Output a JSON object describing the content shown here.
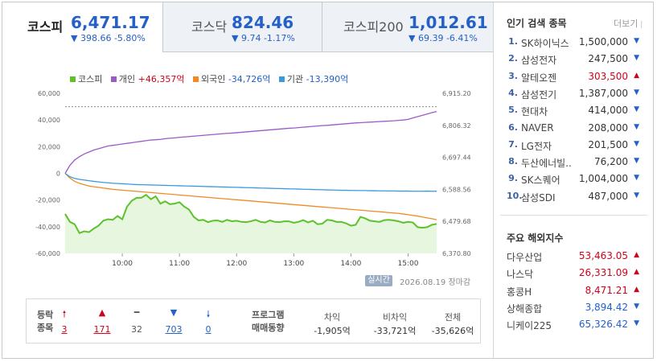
{
  "tabs": [
    {
      "name": "코스피",
      "value": "6,471.17",
      "change": "▼ 398.66 -5.80%",
      "active": true
    },
    {
      "name": "코스닥",
      "value": "824.46",
      "change": "▼ 9.74 -1.17%",
      "active": false
    },
    {
      "name": "코스피200",
      "value": "1,012.61",
      "change": "▼ 69.39 -6.41%",
      "active": false
    }
  ],
  "legend": {
    "kospi": "코스피",
    "individual_label": "개인",
    "individual_value": "+46,357억",
    "foreign_label": "외국인",
    "foreign_value": "-34,726억",
    "institution_label": "기관",
    "institution_value": "-13,390억"
  },
  "colors": {
    "kospi": "#5cc22a",
    "individual": "#9a5bc9",
    "foreign": "#f08a24",
    "institution": "#3a9ae0",
    "up": "#d0021b",
    "down": "#2460c7"
  },
  "chart_data": {
    "type": "line",
    "x": [
      "09:00",
      "09:05",
      "09:10",
      "09:15",
      "09:20",
      "09:25",
      "09:30",
      "09:35",
      "09:40",
      "09:45",
      "09:50",
      "09:55",
      "10:00",
      "10:05",
      "10:10",
      "10:15",
      "10:20",
      "10:25",
      "10:30",
      "10:35",
      "10:40",
      "10:45",
      "10:50",
      "10:55",
      "11:00",
      "11:05",
      "11:10",
      "11:15",
      "11:20",
      "11:25",
      "11:30",
      "11:35",
      "11:40",
      "11:45",
      "11:50",
      "11:55",
      "12:00",
      "12:05",
      "12:10",
      "12:15",
      "12:20",
      "12:25",
      "12:30",
      "12:35",
      "12:40",
      "12:45",
      "12:50",
      "12:55",
      "13:00",
      "13:05",
      "13:10",
      "13:15",
      "13:20",
      "13:25",
      "13:30",
      "13:35",
      "13:40",
      "13:45",
      "13:50",
      "13:55",
      "14:00",
      "14:05",
      "14:10",
      "14:15",
      "14:20",
      "14:25",
      "14:30",
      "14:35",
      "14:40",
      "14:45",
      "14:50",
      "14:55",
      "15:00",
      "15:05",
      "15:10",
      "15:15",
      "15:20",
      "15:25",
      "15:30"
    ],
    "series": [
      {
        "name": "개인",
        "axis": "left",
        "values": [
          0,
          6000,
          10000,
          12500,
          14500,
          16000,
          17500,
          18500,
          19500,
          20500,
          21000,
          21500,
          22000,
          22500,
          23000,
          23500,
          24000,
          24500,
          25000,
          25200,
          25500,
          26000,
          26300,
          26600,
          27000,
          27300,
          27600,
          27900,
          28200,
          28500,
          28800,
          29100,
          29400,
          29700,
          30000,
          30200,
          30500,
          30800,
          31100,
          31400,
          31700,
          32000,
          32300,
          32600,
          32900,
          33200,
          33500,
          33800,
          34000,
          34300,
          34600,
          34900,
          35200,
          35500,
          35800,
          36000,
          36300,
          36600,
          36900,
          37200,
          37500,
          37800,
          38000,
          38200,
          38400,
          38600,
          38800,
          39000,
          39200,
          39400,
          39700,
          40000,
          40500,
          41500,
          42500,
          43500,
          44500,
          45500,
          46357
        ]
      },
      {
        "name": "외국인",
        "axis": "left",
        "values": [
          0,
          -3500,
          -6000,
          -7500,
          -8500,
          -9500,
          -10000,
          -10500,
          -11000,
          -11500,
          -12000,
          -12300,
          -12600,
          -12900,
          -13200,
          -13500,
          -13800,
          -14100,
          -14400,
          -14700,
          -15000,
          -15300,
          -15600,
          -15900,
          -16200,
          -16500,
          -16800,
          -17100,
          -17400,
          -17700,
          -18000,
          -18300,
          -18600,
          -18900,
          -19200,
          -19500,
          -19800,
          -20100,
          -20400,
          -20700,
          -21000,
          -21300,
          -21600,
          -21900,
          -22200,
          -22500,
          -22800,
          -23100,
          -23400,
          -23700,
          -24000,
          -24300,
          -24600,
          -24900,
          -25200,
          -25500,
          -25800,
          -26100,
          -26400,
          -26700,
          -27000,
          -27300,
          -27600,
          -27900,
          -28200,
          -28500,
          -28800,
          -29100,
          -29400,
          -29700,
          -30000,
          -30500,
          -31000,
          -31500,
          -32000,
          -32700,
          -33400,
          -34000,
          -34726
        ]
      },
      {
        "name": "기관",
        "axis": "left",
        "values": [
          0,
          -2500,
          -3800,
          -4500,
          -5000,
          -5500,
          -6000,
          -6400,
          -6800,
          -7100,
          -7400,
          -7600,
          -7800,
          -8000,
          -8200,
          -8400,
          -8500,
          -8600,
          -8700,
          -8800,
          -8900,
          -9000,
          -9100,
          -9200,
          -9300,
          -9400,
          -9500,
          -9600,
          -9700,
          -9800,
          -9900,
          -10000,
          -10100,
          -10200,
          -10300,
          -10400,
          -10500,
          -10600,
          -10700,
          -10800,
          -10900,
          -11000,
          -11100,
          -11200,
          -11300,
          -11400,
          -11500,
          -11600,
          -11700,
          -11800,
          -11900,
          -12000,
          -12100,
          -12200,
          -12300,
          -12400,
          -12500,
          -12600,
          -12700,
          -12700,
          -12800,
          -12800,
          -12900,
          -12900,
          -13000,
          -13000,
          -13100,
          -13100,
          -13200,
          -13200,
          -13300,
          -13300,
          -13300,
          -13400,
          -13400,
          -13400,
          -13300,
          -13400,
          -13390
        ]
      },
      {
        "name": "코스피",
        "axis": "right",
        "values": [
          6505,
          6478,
          6470,
          6440,
          6446,
          6443,
          6455,
          6465,
          6482,
          6487,
          6485,
          6498,
          6487,
          6530,
          6550,
          6560,
          6560,
          6570,
          6555,
          6565,
          6540,
          6548,
          6538,
          6540,
          6545,
          6530,
          6520,
          6495,
          6483,
          6485,
          6477,
          6482,
          6483,
          6478,
          6485,
          6480,
          6482,
          6478,
          6477,
          6480,
          6485,
          6478,
          6476,
          6483,
          6478,
          6477,
          6480,
          6480,
          6475,
          6478,
          6484,
          6476,
          6482,
          6470,
          6472,
          6485,
          6483,
          6478,
          6478,
          6473,
          6465,
          6468,
          6495,
          6490,
          6482,
          6480,
          6478,
          6484,
          6485,
          6483,
          6480,
          6475,
          6478,
          6476,
          6460,
          6458,
          6460,
          6468,
          6471.17
        ]
      }
    ],
    "left_ticks": [
      "60,000",
      "40,000",
      "20,000",
      "0",
      "-20,000",
      "-40,000",
      "-60,000"
    ],
    "right_ticks": [
      "6,915.20",
      "6,806.32",
      "6,697.44",
      "6,588.56",
      "6,479.68",
      "6,370.80"
    ],
    "x_ticks": [
      "10:00",
      "11:00",
      "12:00",
      "13:00",
      "14:00",
      "15:00"
    ],
    "ylim_left": [
      -60000,
      60000
    ],
    "ylim_right": [
      6370.8,
      6915.2
    ],
    "reference_line_right": 6869.83,
    "grid": false
  },
  "chart_footer": {
    "badge": "실시간",
    "date": "2026.08.19",
    "status": "장마감"
  },
  "breadth": {
    "label_top": "등락",
    "label_bottom": "종목",
    "items": [
      {
        "icon": "upper-limit-icon",
        "glyph": "🠕",
        "count": "3",
        "cls": "red"
      },
      {
        "icon": "rise-icon",
        "glyph": "▲",
        "count": "171",
        "cls": "red"
      },
      {
        "icon": "unchanged-icon",
        "glyph": "━",
        "count": "32",
        "cls": "gray"
      },
      {
        "icon": "fall-icon",
        "glyph": "▼",
        "count": "703",
        "cls": "blue"
      },
      {
        "icon": "lower-limit-icon",
        "glyph": "🠗",
        "count": "0",
        "cls": "blue"
      }
    ]
  },
  "program": {
    "label_top": "프로그램",
    "label_bottom": "매매동향",
    "cols": [
      {
        "head": "차익",
        "value": "-1,905억"
      },
      {
        "head": "비차익",
        "value": "-33,721억"
      },
      {
        "head": "전체",
        "value": "-35,626억"
      }
    ]
  },
  "popular": {
    "title": "인기 검색 종목",
    "more": "더보기",
    "items": [
      {
        "rank": "1.",
        "name": "SK하이닉스",
        "price": "1,500,000",
        "dir": "down"
      },
      {
        "rank": "2.",
        "name": "삼성전자",
        "price": "247,500",
        "dir": "down"
      },
      {
        "rank": "3.",
        "name": "알테오젠",
        "price": "303,500",
        "dir": "up"
      },
      {
        "rank": "4.",
        "name": "삼성전기",
        "price": "1,387,000",
        "dir": "down"
      },
      {
        "rank": "5.",
        "name": "현대차",
        "price": "414,000",
        "dir": "down"
      },
      {
        "rank": "6.",
        "name": "NAVER",
        "price": "208,000",
        "dir": "down"
      },
      {
        "rank": "7.",
        "name": "LG전자",
        "price": "201,500",
        "dir": "down"
      },
      {
        "rank": "8.",
        "name": "두산에너빌..",
        "price": "76,200",
        "dir": "down"
      },
      {
        "rank": "9.",
        "name": "SK스퀘어",
        "price": "1,004,000",
        "dir": "down"
      },
      {
        "rank": "10.",
        "name": "삼성SDI",
        "price": "487,000",
        "dir": "down"
      }
    ]
  },
  "overseas": {
    "title": "주요 해외지수",
    "items": [
      {
        "name": "다우산업",
        "price": "53,463.05",
        "dir": "up"
      },
      {
        "name": "나스닥",
        "price": "26,331.09",
        "dir": "up"
      },
      {
        "name": "홍콩H",
        "price": "8,471.21",
        "dir": "up"
      },
      {
        "name": "상해종합",
        "price": "3,894.42",
        "dir": "down"
      },
      {
        "name": "니케이225",
        "price": "65,326.42",
        "dir": "down"
      }
    ]
  }
}
